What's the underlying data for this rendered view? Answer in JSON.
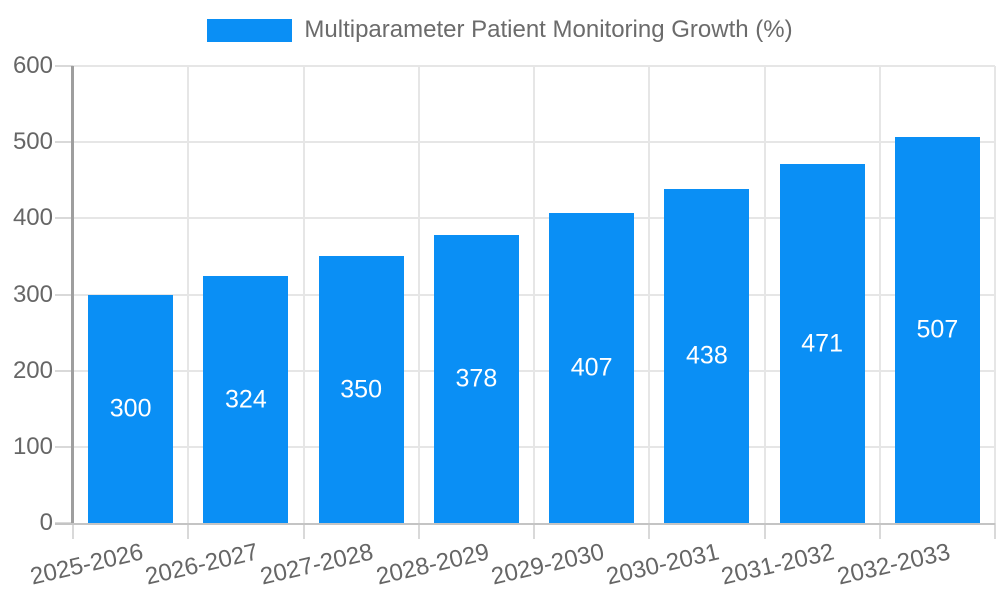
{
  "chart_data": {
    "type": "bar",
    "title": "Multiparameter Patient Monitoring Growth (%)",
    "categories": [
      "2025-2026",
      "2026-2027",
      "2027-2028",
      "2028-2029",
      "2029-2030",
      "2030-2031",
      "2031-2032",
      "2032-2033"
    ],
    "values": [
      300,
      324,
      350,
      378,
      407,
      438,
      471,
      507
    ],
    "xlabel": "",
    "ylabel": "",
    "ylim": [
      0,
      600
    ],
    "ytick_step": 100,
    "yticks": [
      0,
      100,
      200,
      300,
      400,
      500,
      600
    ],
    "grid": true,
    "legend_position": "top",
    "value_labels": "inside-center",
    "colors": {
      "bar": "#0a8ff5",
      "value_label": "#ffffff",
      "legend_text": "#6b6b6b",
      "tick_text": "#666666",
      "gridline": "#e6e6e6",
      "tick_mark": "#d9d9d9",
      "y_axis_line": "#9e9e9e",
      "x_axis_line": "#c4c4c4",
      "background": "#ffffff"
    }
  }
}
